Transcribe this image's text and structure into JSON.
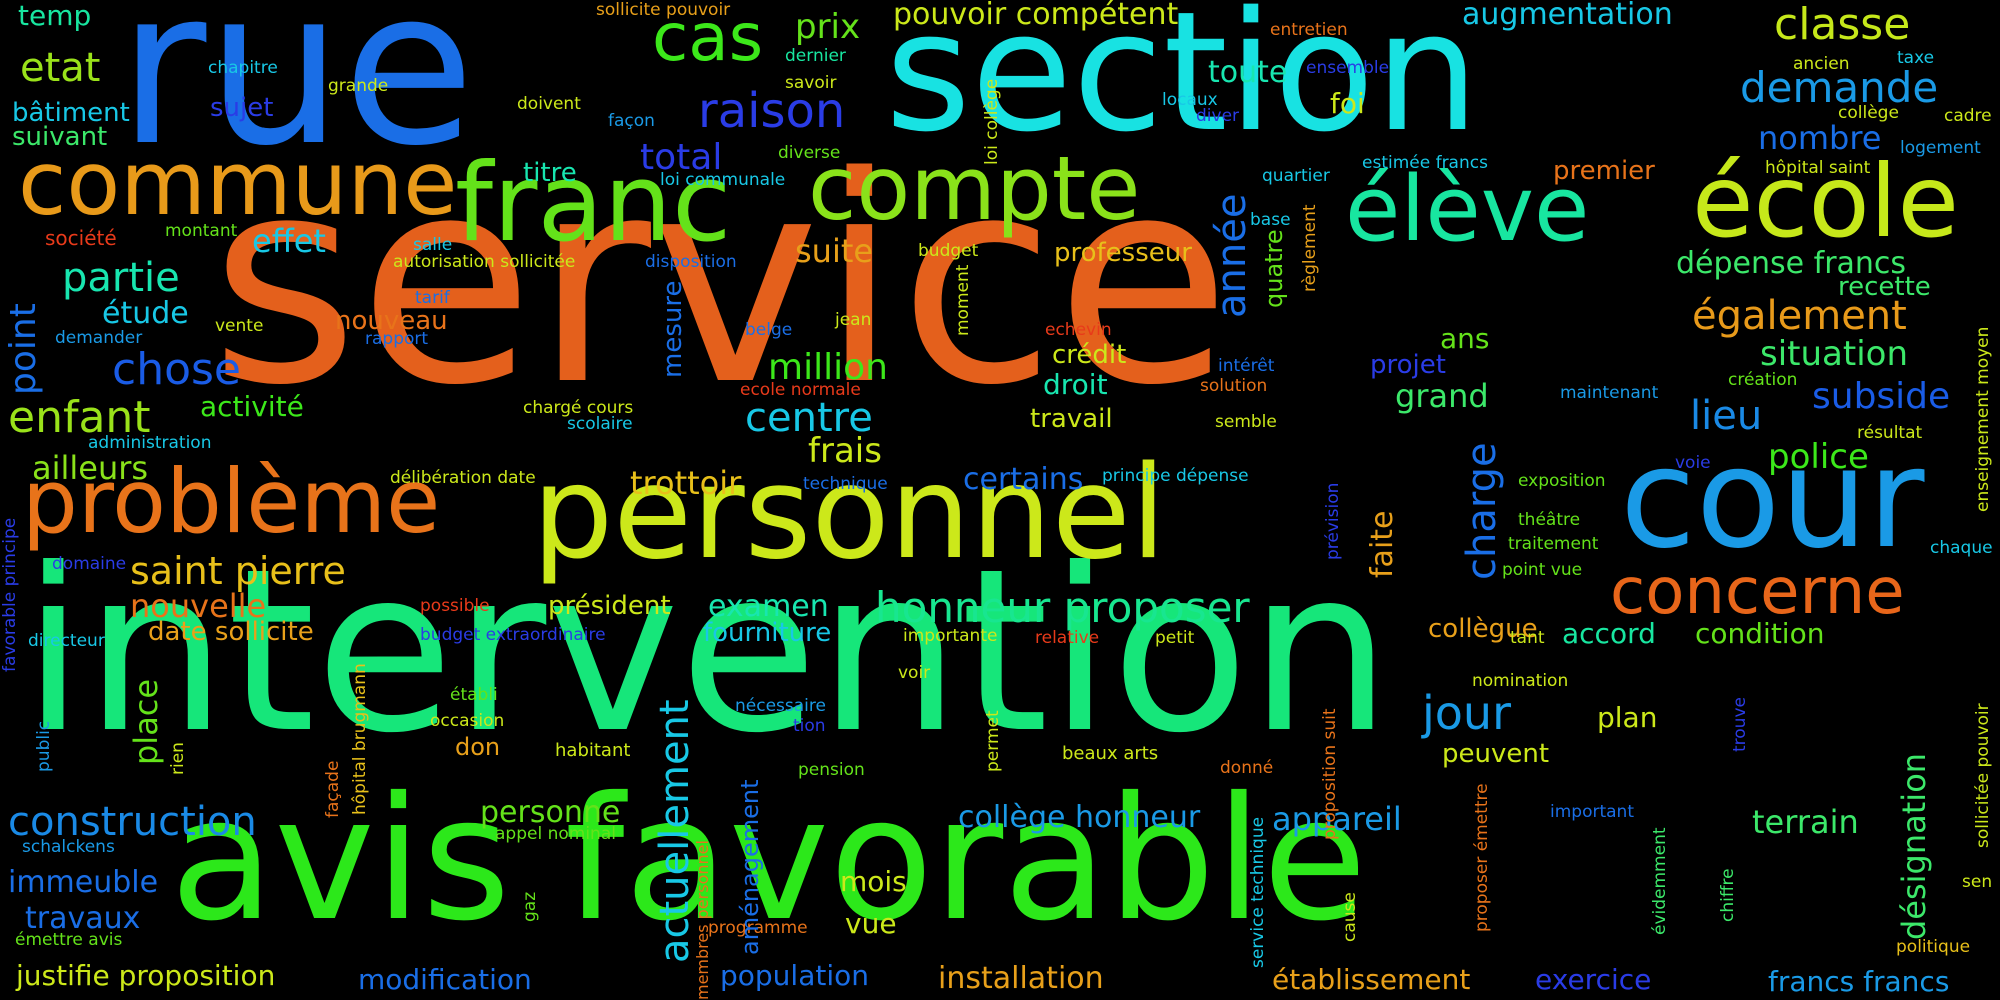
{
  "background": "#000000",
  "words": [
    {
      "text": "service",
      "color": "#e4601c"
    },
    {
      "text": "intervention",
      "color": "#16e67a"
    },
    {
      "text": "rue",
      "color": "#1a6ee6"
    },
    {
      "text": "section",
      "color": "#18e2e2"
    },
    {
      "text": "avis favorable",
      "color": "#2ce81a"
    },
    {
      "text": "personnel",
      "color": "#cce81a"
    },
    {
      "text": "cour",
      "color": "#1a9ae6"
    },
    {
      "text": "commune",
      "color": "#e89a1a"
    },
    {
      "text": "franc",
      "color": "#64e21a"
    },
    {
      "text": "compte",
      "color": "#8ae21a"
    },
    {
      "text": "élève",
      "color": "#18e6a0"
    },
    {
      "text": "école",
      "color": "#c6e81a"
    },
    {
      "text": "problème",
      "color": "#e8731a"
    },
    {
      "text": "cas",
      "color": "#3ce81a"
    },
    {
      "text": "raison",
      "color": "#2a3ce6"
    },
    {
      "text": "concerne",
      "color": "#e8661a"
    },
    {
      "text": "honneur proposer",
      "color": "#18e690"
    },
    {
      "text": "saint pierre",
      "color": "#e8c01a"
    },
    {
      "text": "etat",
      "color": "#9ae21a"
    },
    {
      "text": "classe",
      "color": "#c6e81a"
    },
    {
      "text": "demande",
      "color": "#1a9ae6"
    },
    {
      "text": "partie",
      "color": "#18e6b0"
    },
    {
      "text": "chose",
      "color": "#1a5ce6"
    },
    {
      "text": "enfant",
      "color": "#9ae21a"
    },
    {
      "text": "construction",
      "color": "#1a8ae6"
    },
    {
      "text": "jour",
      "color": "#1a9ae6"
    },
    {
      "text": "centre",
      "color": "#18c8e6"
    },
    {
      "text": "million",
      "color": "#3ce81a"
    },
    {
      "text": "également",
      "color": "#e89a1a"
    },
    {
      "text": "situation",
      "color": "#3ce86a"
    },
    {
      "text": "lieu",
      "color": "#1a8ae6"
    },
    {
      "text": "subside",
      "color": "#1a5ce6"
    },
    {
      "text": "police",
      "color": "#3ce81a"
    },
    {
      "text": "dépense francs",
      "color": "#3ce86a"
    },
    {
      "text": "nombre",
      "color": "#1a6ee6"
    },
    {
      "text": "augmentation",
      "color": "#18c8e6"
    },
    {
      "text": "pouvoir compétent",
      "color": "#cce81a"
    },
    {
      "text": "temp",
      "color": "#18e6a0"
    },
    {
      "text": "bâtiment",
      "color": "#18c8e6"
    },
    {
      "text": "suivant",
      "color": "#3ce86a"
    },
    {
      "text": "sujet",
      "color": "#2a3ce6"
    },
    {
      "text": "total",
      "color": "#2a3ce6"
    },
    {
      "text": "prix",
      "color": "#64e21a"
    },
    {
      "text": "effet",
      "color": "#18c8e6"
    },
    {
      "text": "étude",
      "color": "#18c8e6"
    },
    {
      "text": "activité",
      "color": "#3ce81a"
    },
    {
      "text": "ailleurs",
      "color": "#8ae21a"
    },
    {
      "text": "nouvelle",
      "color": "#e8731a"
    },
    {
      "text": "date sollicite",
      "color": "#e8a01a"
    },
    {
      "text": "trottoir",
      "color": "#e8c01a"
    },
    {
      "text": "certains",
      "color": "#1a6ee6"
    },
    {
      "text": "frais",
      "color": "#cce81a"
    },
    {
      "text": "examen",
      "color": "#18e6b0"
    },
    {
      "text": "président",
      "color": "#cce81a"
    },
    {
      "text": "fourniture",
      "color": "#18c8e6"
    },
    {
      "text": "collègue",
      "color": "#e8a01a"
    },
    {
      "text": "accord",
      "color": "#18e6a0"
    },
    {
      "text": "condition",
      "color": "#64e21a"
    },
    {
      "text": "professeur",
      "color": "#e8c01a"
    },
    {
      "text": "suite",
      "color": "#e8a01a"
    },
    {
      "text": "toute",
      "color": "#18e6b0"
    },
    {
      "text": "titre",
      "color": "#18e6b0"
    },
    {
      "text": "foi",
      "color": "#cce81a"
    },
    {
      "text": "premier",
      "color": "#e8731a"
    },
    {
      "text": "recette",
      "color": "#3ce86a"
    },
    {
      "text": "ans",
      "color": "#64e21a"
    },
    {
      "text": "projet",
      "color": "#2a3ce6"
    },
    {
      "text": "grand",
      "color": "#3ce86a"
    },
    {
      "text": "crédit",
      "color": "#cce81a"
    },
    {
      "text": "droit",
      "color": "#18e6b0"
    },
    {
      "text": "travail",
      "color": "#cce81a"
    },
    {
      "text": "nouveau",
      "color": "#e8731a"
    },
    {
      "text": "personne",
      "color": "#64e21a"
    },
    {
      "text": "collège honneur",
      "color": "#1a9ae6"
    },
    {
      "text": "appareil",
      "color": "#1a9ae6"
    },
    {
      "text": "terrain",
      "color": "#3ce86a"
    },
    {
      "text": "peuvent",
      "color": "#cce81a"
    },
    {
      "text": "plan",
      "color": "#cce81a"
    },
    {
      "text": "immeuble",
      "color": "#1a6ee6"
    },
    {
      "text": "travaux",
      "color": "#1a6ee6"
    },
    {
      "text": "mois",
      "color": "#cce81a"
    },
    {
      "text": "vue",
      "color": "#cce81a"
    },
    {
      "text": "justifie proposition",
      "color": "#cce81a"
    },
    {
      "text": "modification",
      "color": "#1a6ee6"
    },
    {
      "text": "population",
      "color": "#1a6ee6"
    },
    {
      "text": "installation",
      "color": "#e8a01a"
    },
    {
      "text": "établissement",
      "color": "#e8a01a"
    },
    {
      "text": "exercice",
      "color": "#2a3ce6"
    },
    {
      "text": "francs francs",
      "color": "#1a9ae6"
    },
    {
      "text": "don",
      "color": "#e8a01a"
    },
    {
      "text": "habitant",
      "color": "#cce81a"
    },
    {
      "text": "pension",
      "color": "#64e21a"
    },
    {
      "text": "beaux arts",
      "color": "#cce81a"
    },
    {
      "text": "nomination",
      "color": "#cce81a"
    },
    {
      "text": "important",
      "color": "#1a6ee6"
    },
    {
      "text": "société",
      "color": "#e83a1a"
    },
    {
      "text": "montant",
      "color": "#64e21a"
    },
    {
      "text": "salle",
      "color": "#18c8e6"
    },
    {
      "text": "autorisation sollicitée",
      "color": "#cce81a"
    },
    {
      "text": "disposition",
      "color": "#1a6ee6"
    },
    {
      "text": "budget",
      "color": "#cce81a"
    },
    {
      "text": "demander",
      "color": "#1a9ae6"
    },
    {
      "text": "vente",
      "color": "#cce81a"
    },
    {
      "text": "tarif",
      "color": "#1a6ee6"
    },
    {
      "text": "rapport",
      "color": "#1a6ee6"
    },
    {
      "text": "belge",
      "color": "#1a6ee6"
    },
    {
      "text": "jean",
      "color": "#cce81a"
    },
    {
      "text": "echevin",
      "color": "#e83a1a"
    },
    {
      "text": "intérêt",
      "color": "#1a6ee6"
    },
    {
      "text": "solution",
      "color": "#e8731a"
    },
    {
      "text": "administration",
      "color": "#18c8e6"
    },
    {
      "text": "scolaire",
      "color": "#18c8e6"
    },
    {
      "text": "chargé cours",
      "color": "#cce81a"
    },
    {
      "text": "ecole normale",
      "color": "#e83a1a"
    },
    {
      "text": "semble",
      "color": "#cce81a"
    },
    {
      "text": "maintenant",
      "color": "#1a9ae6"
    },
    {
      "text": "création",
      "color": "#64e21a"
    },
    {
      "text": "résultat",
      "color": "#cce81a"
    },
    {
      "text": "voie",
      "color": "#2a3ce6"
    },
    {
      "text": "délibération date",
      "color": "#cce81a"
    },
    {
      "text": "technique",
      "color": "#1a6ee6"
    },
    {
      "text": "principe dépense",
      "color": "#18c8e6"
    },
    {
      "text": "exposition",
      "color": "#64e21a"
    },
    {
      "text": "théâtre",
      "color": "#64e21a"
    },
    {
      "text": "traitement",
      "color": "#64e21a"
    },
    {
      "text": "point vue",
      "color": "#64e21a"
    },
    {
      "text": "chaque",
      "color": "#18c8e6"
    },
    {
      "text": "domaine",
      "color": "#2a3ce6"
    },
    {
      "text": "possible",
      "color": "#e83a1a"
    },
    {
      "text": "budget extraordinaire",
      "color": "#2a3ce6"
    },
    {
      "text": "importante",
      "color": "#cce81a"
    },
    {
      "text": "relative",
      "color": "#e83a1a"
    },
    {
      "text": "petit",
      "color": "#cce81a"
    },
    {
      "text": "tant",
      "color": "#cce81a"
    },
    {
      "text": "directeur",
      "color": "#18c8e6"
    },
    {
      "text": "voir",
      "color": "#cce81a"
    },
    {
      "text": "établi",
      "color": "#64e21a"
    },
    {
      "text": "occasion",
      "color": "#cce81a"
    },
    {
      "text": "nécessaire",
      "color": "#1a9ae6"
    },
    {
      "text": "tion",
      "color": "#2a3ce6"
    },
    {
      "text": "donné",
      "color": "#e8731a"
    },
    {
      "text": "schalckens",
      "color": "#1a9ae6"
    },
    {
      "text": "appel nominal",
      "color": "#64e21a"
    },
    {
      "text": "émettre avis",
      "color": "#64e21a"
    },
    {
      "text": "programme",
      "color": "#e8731a"
    },
    {
      "text": "politique",
      "color": "#e8c01a"
    },
    {
      "text": "sen",
      "color": "#cce81a"
    },
    {
      "text": "sollicite pouvoir",
      "color": "#e8a01a"
    },
    {
      "text": "entretien",
      "color": "#e8731a"
    },
    {
      "text": "ensemble",
      "color": "#2a3ce6"
    },
    {
      "text": "chapitre",
      "color": "#18c8e6"
    },
    {
      "text": "grande",
      "color": "#cce81a"
    },
    {
      "text": "dernier",
      "color": "#18e6a0"
    },
    {
      "text": "savoir",
      "color": "#cce81a"
    },
    {
      "text": "doivent",
      "color": "#cce81a"
    },
    {
      "text": "façon",
      "color": "#1a9ae6"
    },
    {
      "text": "diverse",
      "color": "#64e21a"
    },
    {
      "text": "loi communale",
      "color": "#18c8e6"
    },
    {
      "text": "locaux",
      "color": "#18c8e6"
    },
    {
      "text": "diver",
      "color": "#2a3ce6"
    },
    {
      "text": "quartier",
      "color": "#18c8e6"
    },
    {
      "text": "estimée francs",
      "color": "#18c8e6"
    },
    {
      "text": "base",
      "color": "#18c8e6"
    },
    {
      "text": "ancien",
      "color": "#cce81a"
    },
    {
      "text": "taxe",
      "color": "#18c8e6"
    },
    {
      "text": "collège",
      "color": "#cce81a"
    },
    {
      "text": "cadre",
      "color": "#cce81a"
    },
    {
      "text": "hôpital saint",
      "color": "#cce81a"
    },
    {
      "text": "logement",
      "color": "#1a9ae6"
    },
    {
      "text": "point",
      "color": "#1a6ee6"
    },
    {
      "text": "année",
      "color": "#1a6ee6"
    },
    {
      "text": "quatre",
      "color": "#64e21a"
    },
    {
      "text": "mesure",
      "color": "#1a6ee6"
    },
    {
      "text": "charge",
      "color": "#1a6ee6"
    },
    {
      "text": "faite",
      "color": "#e8a01a"
    },
    {
      "text": "place",
      "color": "#64e21a"
    },
    {
      "text": "actuellement",
      "color": "#18c8e6"
    },
    {
      "text": "aménagement",
      "color": "#1a6ee6"
    },
    {
      "text": "membres personnel",
      "color": "#e8731a"
    },
    {
      "text": "désignation",
      "color": "#3ce86a"
    },
    {
      "text": "favorable principe",
      "color": "#2a3ce6"
    },
    {
      "text": "enseignement moyen",
      "color": "#cce81a"
    },
    {
      "text": "loi collège",
      "color": "#cce81a"
    },
    {
      "text": "moment",
      "color": "#cce81a"
    },
    {
      "text": "règlement",
      "color": "#e8a01a"
    },
    {
      "text": "prévision",
      "color": "#2a3ce6"
    },
    {
      "text": "public",
      "color": "#1a9ae6"
    },
    {
      "text": "rien",
      "color": "#cce81a"
    },
    {
      "text": "façade",
      "color": "#e8731a"
    },
    {
      "text": "hôpital brugmann",
      "color": "#e8c01a"
    },
    {
      "text": "gaz",
      "color": "#64e21a"
    },
    {
      "text": "permet",
      "color": "#cce81a"
    },
    {
      "text": "service technique",
      "color": "#18c8e6"
    },
    {
      "text": "cause",
      "color": "#cce81a"
    },
    {
      "text": "proposition suit",
      "color": "#e8731a"
    },
    {
      "text": "proposer émettre",
      "color": "#e8731a"
    },
    {
      "text": "évidemment",
      "color": "#3ce86a"
    },
    {
      "text": "chiffre",
      "color": "#3ce86a"
    },
    {
      "text": "trouve",
      "color": "#2a3ce6"
    },
    {
      "text": "sollicitée pouvoir",
      "color": "#cce81a"
    }
  ]
}
